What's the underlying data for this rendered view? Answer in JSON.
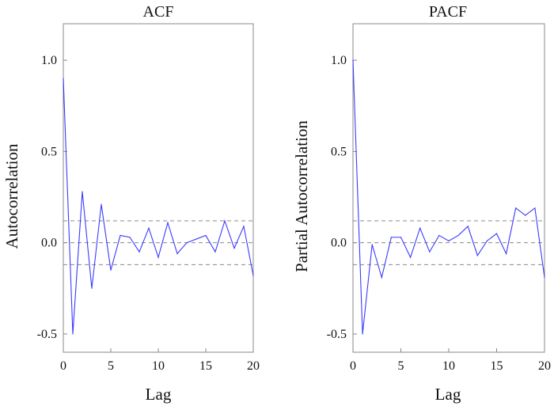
{
  "chart_data": [
    {
      "type": "line",
      "title": "ACF",
      "xlabel": "Lag",
      "ylabel": "Autocorrelation",
      "xlim": [
        0,
        20
      ],
      "ylim": [
        -0.6,
        1.2
      ],
      "xticks": [
        0,
        5,
        10,
        15,
        20
      ],
      "xtick_labels": [
        "0",
        "5",
        "10",
        "15",
        "20"
      ],
      "yticks": [
        1.0,
        0.5,
        0.0,
        -0.5
      ],
      "ytick_labels": [
        "1.0",
        "0.5",
        "0.0",
        "-0.5"
      ],
      "reference_lines": [
        0.12,
        0.0,
        -0.12
      ],
      "grid": false,
      "color": "#3a3aff",
      "x": [
        0,
        1,
        2,
        3,
        4,
        5,
        6,
        7,
        8,
        9,
        10,
        11,
        12,
        13,
        14,
        15,
        16,
        17,
        18,
        19,
        20
      ],
      "values": [
        0.9,
        -0.5,
        0.28,
        -0.25,
        0.21,
        -0.15,
        0.04,
        0.03,
        -0.05,
        0.08,
        -0.08,
        0.11,
        -0.06,
        0.0,
        0.02,
        0.04,
        -0.05,
        0.12,
        -0.03,
        0.09,
        -0.18
      ]
    },
    {
      "type": "line",
      "title": "PACF",
      "xlabel": "Lag",
      "ylabel": "Partial Autocorrelation",
      "xlim": [
        0,
        20
      ],
      "ylim": [
        -0.6,
        1.2
      ],
      "xticks": [
        0,
        5,
        10,
        15,
        20
      ],
      "xtick_labels": [
        "0",
        "5",
        "10",
        "15",
        "20"
      ],
      "yticks": [
        1.0,
        0.5,
        0.0,
        -0.5
      ],
      "ytick_labels": [
        "1.0",
        "0.5",
        "0.0",
        "-0.5"
      ],
      "reference_lines": [
        0.12,
        0.0,
        -0.12
      ],
      "grid": false,
      "color": "#3a3aff",
      "x": [
        0,
        1,
        2,
        3,
        4,
        5,
        6,
        7,
        8,
        9,
        10,
        11,
        12,
        13,
        14,
        15,
        16,
        17,
        18,
        19,
        20
      ],
      "values": [
        1.0,
        -0.5,
        -0.01,
        -0.19,
        0.03,
        0.03,
        -0.08,
        0.08,
        -0.05,
        0.04,
        0.01,
        0.04,
        0.09,
        -0.07,
        0.01,
        0.05,
        -0.06,
        0.19,
        0.15,
        0.19,
        -0.19
      ]
    }
  ]
}
